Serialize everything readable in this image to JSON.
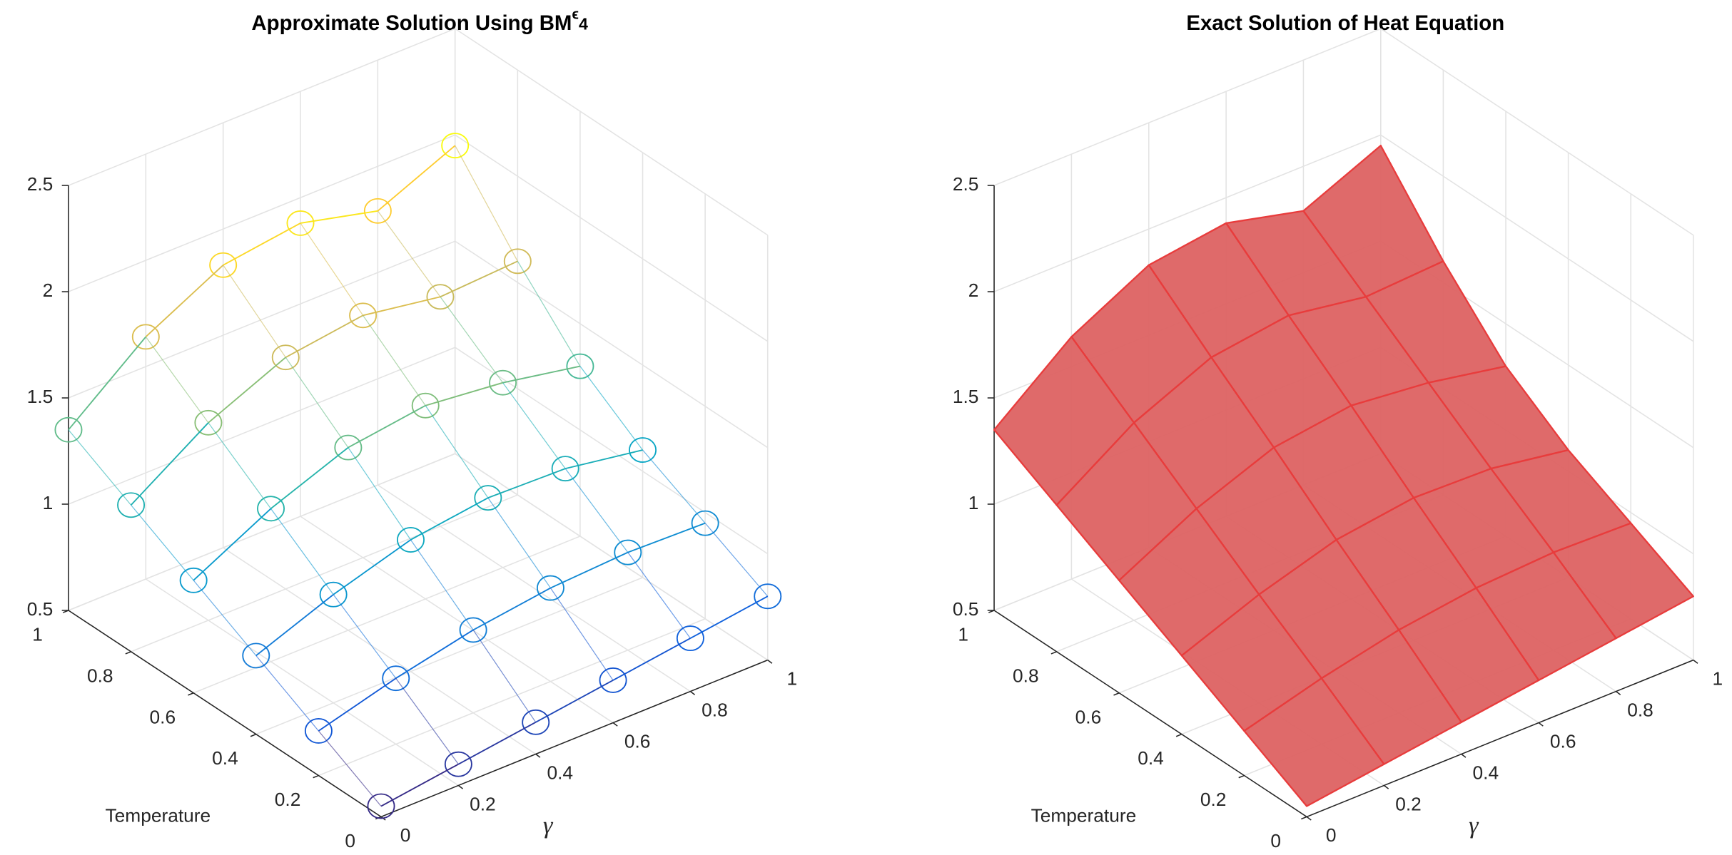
{
  "chart_data": [
    {
      "type": "scatter3d",
      "title": "Approximate Solution Using BM",
      "title_sup": "ϵ",
      "title_sub": "4",
      "xlabel": "γ",
      "ylabel": "Temperature",
      "x": [
        0,
        0.2,
        0.4,
        0.6,
        0.8,
        1
      ],
      "y": [
        0,
        0.2,
        0.4,
        0.6,
        0.8,
        1
      ],
      "z": [
        [
          0.55,
          0.6,
          0.65,
          0.7,
          0.75,
          0.8
        ],
        [
          0.71,
          0.81,
          0.89,
          0.94,
          0.96,
          0.95
        ],
        [
          0.87,
          1.01,
          1.12,
          1.17,
          1.16,
          1.1
        ],
        [
          1.03,
          1.22,
          1.36,
          1.41,
          1.37,
          1.3
        ],
        [
          1.19,
          1.43,
          1.59,
          1.64,
          1.58,
          1.6
        ],
        [
          1.35,
          1.64,
          1.83,
          1.88,
          1.79,
          1.95
        ]
      ],
      "xlim": [
        0,
        1
      ],
      "ylim": [
        0,
        1
      ],
      "zlim": [
        0.5,
        2.5
      ],
      "xticks": [
        0,
        0.2,
        0.4,
        0.6,
        0.8,
        1
      ],
      "yticks": [
        0,
        0.2,
        0.4,
        0.6,
        0.8,
        1
      ],
      "zticks": [
        0.5,
        1,
        1.5,
        2,
        2.5
      ],
      "grid": true,
      "colormap": [
        "#352a87",
        "#0f5cdd",
        "#1481d6",
        "#06a4ca",
        "#2eb7a4",
        "#87bf77",
        "#d1bb59",
        "#fec832",
        "#f9fb0e"
      ]
    },
    {
      "type": "surface",
      "title": "Exact Solution of Heat Equation",
      "xlabel": "γ",
      "ylabel": "Temperature",
      "x": [
        0,
        0.2,
        0.4,
        0.6,
        0.8,
        1
      ],
      "y": [
        0,
        0.2,
        0.4,
        0.6,
        0.8,
        1
      ],
      "z": [
        [
          0.55,
          0.6,
          0.65,
          0.7,
          0.75,
          0.8
        ],
        [
          0.71,
          0.81,
          0.89,
          0.94,
          0.96,
          0.95
        ],
        [
          0.87,
          1.01,
          1.12,
          1.17,
          1.16,
          1.1
        ],
        [
          1.03,
          1.22,
          1.36,
          1.41,
          1.37,
          1.3
        ],
        [
          1.19,
          1.43,
          1.59,
          1.64,
          1.58,
          1.6
        ],
        [
          1.35,
          1.64,
          1.83,
          1.88,
          1.79,
          1.95
        ]
      ],
      "xlim": [
        0,
        1
      ],
      "ylim": [
        0,
        1
      ],
      "zlim": [
        0.5,
        2.5
      ],
      "xticks": [
        0,
        0.2,
        0.4,
        0.6,
        0.8,
        1
      ],
      "yticks": [
        0,
        0.2,
        0.4,
        0.6,
        0.8,
        1
      ],
      "zticks": [
        0.5,
        1,
        1.5,
        2,
        2.5
      ],
      "grid": true,
      "color": "#dd6262",
      "edgecolor": "#e83c3c"
    }
  ]
}
